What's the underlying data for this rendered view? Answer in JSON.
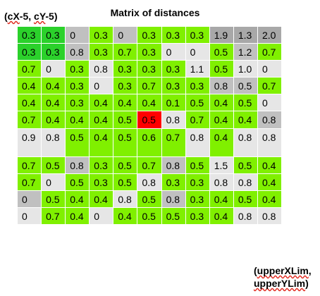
{
  "title": "Matrix of distances",
  "corner_top_left": {
    "line1_prefix": "(",
    "line1_word1": "cX",
    "line1_mid": "-5, ",
    "line1_word2": "cY",
    "line1_suffix": "-5)"
  },
  "corner_bottom_right": {
    "line1_prefix": "(",
    "line1_word": "upperXLim",
    "line1_suffix": ",",
    "line2_word": "upperYLim",
    "line2_suffix": ")"
  },
  "colors": {
    "green": "#80f000",
    "dark_green": "#2bd12b",
    "light_gray": "#e6e6e6",
    "mid_gray": "#c0c0c0",
    "dark_gray": "#a8a8a8",
    "red": "#ff0000"
  },
  "matrix": [
    [
      [
        "0.3",
        "dg"
      ],
      [
        "0.3",
        "dg"
      ],
      [
        "0",
        "mg"
      ],
      [
        "0.3",
        "g"
      ],
      [
        "0",
        "mg"
      ],
      [
        "0.3",
        "g"
      ],
      [
        "0.3",
        "g"
      ],
      [
        "0.3",
        "g"
      ],
      [
        "1.9",
        "dk"
      ],
      [
        "1.3",
        "dk"
      ],
      [
        "2.0",
        "dk"
      ]
    ],
    [
      [
        "0.3",
        "dg"
      ],
      [
        "0.3",
        "dg"
      ],
      [
        "0.8",
        "mg"
      ],
      [
        "0.3",
        "g"
      ],
      [
        "0.7",
        "g"
      ],
      [
        "0.3",
        "g"
      ],
      [
        "0",
        "lg"
      ],
      [
        "0",
        "lg"
      ],
      [
        "0.5",
        "g"
      ],
      [
        "1.2",
        "mg"
      ],
      [
        "0.7",
        "g"
      ]
    ],
    [
      [
        "0.7",
        "g"
      ],
      [
        "0",
        "lg"
      ],
      [
        "0.3",
        "g"
      ],
      [
        "0.8",
        "lg"
      ],
      [
        "0.3",
        "g"
      ],
      [
        "0.3",
        "g"
      ],
      [
        "0.3",
        "g"
      ],
      [
        "1.1",
        "lg"
      ],
      [
        "0.5",
        "g"
      ],
      [
        "1.0",
        "lg"
      ],
      [
        "0",
        "lg"
      ]
    ],
    [
      [
        "0.4",
        "g"
      ],
      [
        "0.4",
        "g"
      ],
      [
        "0.3",
        "g"
      ],
      [
        "0",
        "lg"
      ],
      [
        "0.3",
        "g"
      ],
      [
        "0.7",
        "g"
      ],
      [
        "0.3",
        "g"
      ],
      [
        "0.3",
        "g"
      ],
      [
        "0.8",
        "mg"
      ],
      [
        "0.5",
        "mg"
      ],
      [
        "0.7",
        "g"
      ]
    ],
    [
      [
        "0.4",
        "g"
      ],
      [
        "0.4",
        "g"
      ],
      [
        "0.3",
        "g"
      ],
      [
        "0.4",
        "g"
      ],
      [
        "0.4",
        "g"
      ],
      [
        "0.4",
        "g"
      ],
      [
        "0.1",
        "g"
      ],
      [
        "0.5",
        "g"
      ],
      [
        "0.4",
        "g"
      ],
      [
        "0.5",
        "g"
      ],
      [
        "0",
        "lg"
      ]
    ],
    [
      [
        "0.7",
        "g"
      ],
      [
        "0.4",
        "g"
      ],
      [
        "0.4",
        "g"
      ],
      [
        "0.4",
        "g"
      ],
      [
        "0.5",
        "g"
      ],
      [
        "0.5",
        "rd"
      ],
      [
        "0.8",
        "lg"
      ],
      [
        "0.7",
        "g"
      ],
      [
        "0.4",
        "g"
      ],
      [
        "0.4",
        "g"
      ],
      [
        "0.8",
        "mg"
      ]
    ],
    [
      [
        "0.9",
        "lg"
      ],
      [
        "0.8",
        "lg"
      ],
      [
        "0.5",
        "g"
      ],
      [
        "0.4",
        "g"
      ],
      [
        "0.5",
        "g"
      ],
      [
        "0.6",
        "g"
      ],
      [
        "0.7",
        "g"
      ],
      [
        "0.8",
        "lg"
      ],
      [
        "0.4",
        "g"
      ],
      [
        "0.8",
        "lg"
      ],
      [
        "0.8",
        "lg"
      ]
    ],
    [
      [
        "0.7",
        "g"
      ],
      [
        "0.5",
        "g"
      ],
      [
        "0.8",
        "mg"
      ],
      [
        "0.3",
        "g"
      ],
      [
        "0.5",
        "g"
      ],
      [
        "0.7",
        "g"
      ],
      [
        "0.8",
        "mg"
      ],
      [
        "0.5",
        "g"
      ],
      [
        "1.5",
        "lg"
      ],
      [
        "0.5",
        "g"
      ],
      [
        "0.4",
        "g"
      ]
    ],
    [
      [
        "0.7",
        "g"
      ],
      [
        "0",
        "lg"
      ],
      [
        "0.5",
        "g"
      ],
      [
        "0.3",
        "g"
      ],
      [
        "0.5",
        "g"
      ],
      [
        "0.8",
        "lg"
      ],
      [
        "0.3",
        "g"
      ],
      [
        "0.3",
        "g"
      ],
      [
        "0.8",
        "lg"
      ],
      [
        "0.8",
        "lg"
      ],
      [
        "0.4",
        "g"
      ]
    ],
    [
      [
        "0",
        "mg"
      ],
      [
        "0.5",
        "g"
      ],
      [
        "0.4",
        "g"
      ],
      [
        "0.4",
        "g"
      ],
      [
        "0.8",
        "lg"
      ],
      [
        "0.5",
        "g"
      ],
      [
        "0.8",
        "mg"
      ],
      [
        "0.3",
        "g"
      ],
      [
        "0.4",
        "g"
      ],
      [
        "0.5",
        "g"
      ],
      [
        "0.4",
        "g"
      ]
    ],
    [
      [
        "0",
        "lg"
      ],
      [
        "0.7",
        "g"
      ],
      [
        "0.4",
        "g"
      ],
      [
        "0",
        "lg"
      ],
      [
        "0.4",
        "g"
      ],
      [
        "0.5",
        "g"
      ],
      [
        "0.5",
        "g"
      ],
      [
        "0.3",
        "g"
      ],
      [
        "0.4",
        "g"
      ],
      [
        "0.8",
        "lg"
      ],
      [
        "0.8",
        "lg"
      ]
    ]
  ]
}
